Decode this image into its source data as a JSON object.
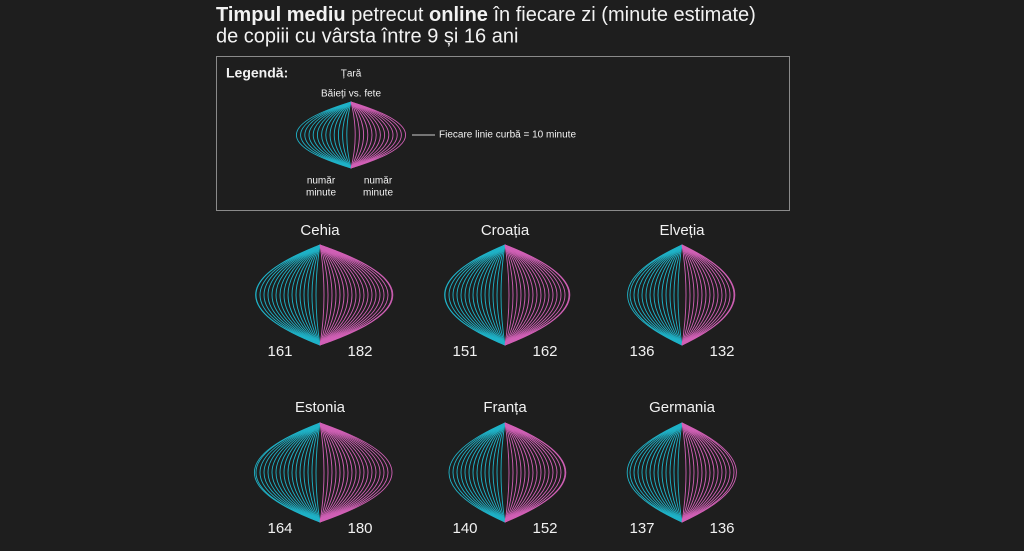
{
  "chart_data": {
    "type": "lens",
    "title": [
      "Timpul mediu",
      " petrecut ",
      "online",
      " în fiecare zi (minute estimate)"
    ],
    "title_bold": [
      true,
      false,
      true,
      false
    ],
    "subtitle": "de copiii cu vârsta între 9 și 16 ani",
    "legend": {
      "heading": "Legendă:",
      "country": "Țară",
      "pair": "Băieți vs. fete",
      "line_note": "Fiecare linie curbă = 10 minute",
      "minutes_left": [
        "număr",
        "minute"
      ],
      "minutes_right": [
        "număr",
        "minute"
      ]
    },
    "minutes_per_line": 10,
    "categories": [
      "Cehia",
      "Croația",
      "Elveția",
      "Estonia",
      "Franța",
      "Germania"
    ],
    "series": [
      {
        "color": "#1fb3c8",
        "values": [
          161,
          151,
          136,
          164,
          140,
          137
        ]
      },
      {
        "color": "#d160b6",
        "values": [
          182,
          162,
          132,
          180,
          152,
          136
        ]
      }
    ]
  }
}
